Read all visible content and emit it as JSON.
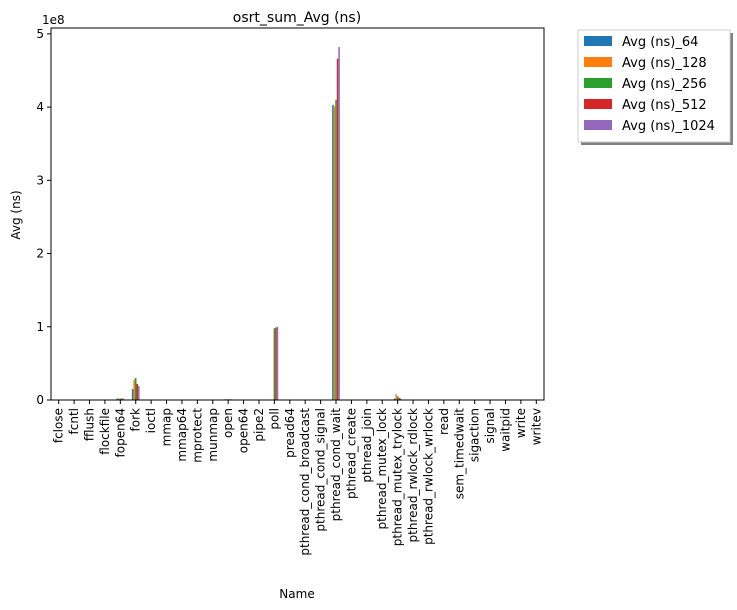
{
  "chart_data": {
    "type": "bar",
    "title": "osrt_sum_Avg (ns)",
    "xlabel": "Name",
    "ylabel": "Avg (ns)",
    "y_multiplier_label": "1e8",
    "ylim": [
      0,
      5.08
    ],
    "y_ticks": [
      0,
      1,
      2,
      3,
      4,
      5
    ],
    "y_tick_labels": [
      "0",
      "1",
      "2",
      "3",
      "4",
      "5"
    ],
    "grid": false,
    "legend_position": "outside-top-right",
    "categories": [
      "fclose",
      "fcntl",
      "fflush",
      "flockfile",
      "fopen64",
      "fork",
      "ioctl",
      "mmap",
      "mmap64",
      "mprotect",
      "munmap",
      "open",
      "open64",
      "pipe2",
      "poll",
      "pread64",
      "pthread_cond_broadcast",
      "pthread_cond_signal",
      "pthread_cond_wait",
      "pthread_create",
      "pthread_join",
      "pthread_mutex_lock",
      "pthread_mutex_trylock",
      "pthread_rwlock_rdlock",
      "pthread_rwlock_wrlock",
      "read",
      "sem_timedwait",
      "sigaction",
      "signal",
      "waitpid",
      "write",
      "writev"
    ],
    "series": [
      {
        "name": "Avg (ns)_64",
        "color": "#1f77b4",
        "values": [
          0,
          0,
          0,
          0,
          0.02,
          0.15,
          0,
          0,
          0,
          0,
          0,
          0.01,
          0,
          0,
          0,
          0,
          0,
          0,
          4.03,
          0,
          0,
          0,
          0.02,
          0,
          0,
          0,
          0,
          0,
          0,
          0,
          0,
          0
        ]
      },
      {
        "name": "Avg (ns)_128",
        "color": "#ff7f0e",
        "values": [
          0,
          0,
          0,
          0,
          0.02,
          0.28,
          0,
          0,
          0,
          0,
          0,
          0.01,
          0,
          0,
          0,
          0,
          0,
          0,
          4.01,
          0,
          0,
          0,
          0.08,
          0,
          0,
          0,
          0,
          0,
          0,
          0,
          0,
          0
        ]
      },
      {
        "name": "Avg (ns)_256",
        "color": "#2ca02c",
        "values": [
          0,
          0,
          0,
          0,
          0.02,
          0.3,
          0,
          0,
          0,
          0,
          0,
          0.01,
          0,
          0,
          0.98,
          0,
          0,
          0,
          4.1,
          0,
          0,
          0,
          0.05,
          0,
          0,
          0,
          0,
          0,
          0,
          0,
          0,
          0
        ]
      },
      {
        "name": "Avg (ns)_512",
        "color": "#d62728",
        "values": [
          0,
          0,
          0,
          0,
          0.02,
          0.22,
          0,
          0,
          0,
          0,
          0,
          0.01,
          0,
          0,
          0.99,
          0,
          0,
          0,
          4.66,
          0,
          0,
          0,
          0.03,
          0,
          0,
          0,
          0,
          0,
          0,
          0,
          0,
          0
        ]
      },
      {
        "name": "Avg (ns)_1024",
        "color": "#9467bd",
        "values": [
          0,
          0,
          0,
          0,
          0.02,
          0.19,
          0,
          0,
          0,
          0,
          0,
          0.01,
          0,
          0,
          1.0,
          0,
          0,
          0,
          4.82,
          0,
          0,
          0,
          0.02,
          0,
          0,
          0,
          0,
          0,
          0,
          0,
          0,
          0
        ]
      }
    ]
  }
}
